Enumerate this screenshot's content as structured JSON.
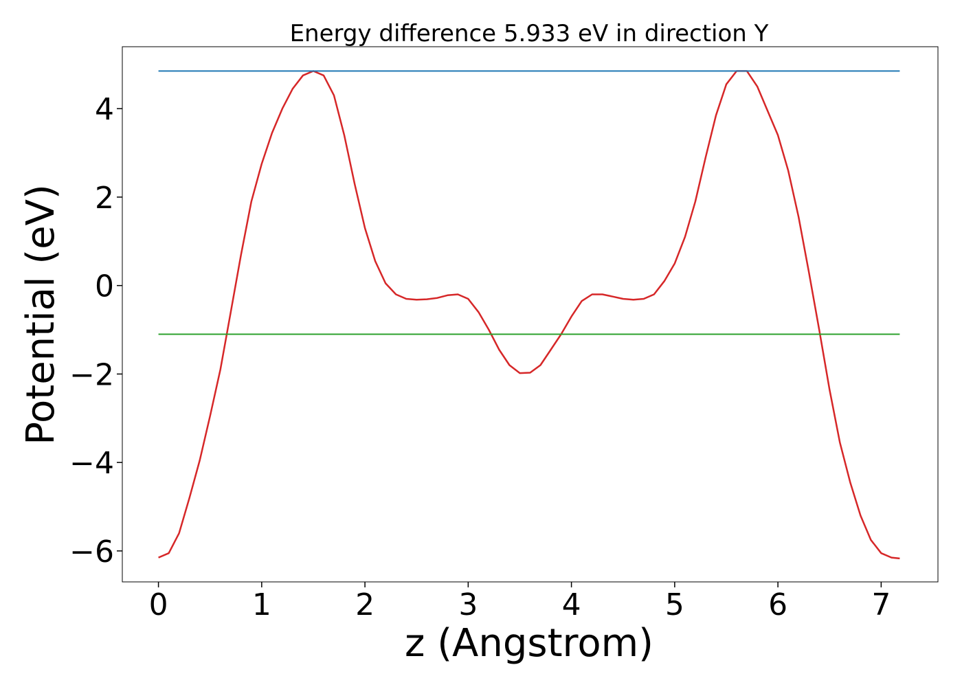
{
  "chart_data": {
    "type": "line",
    "title": "Energy difference 5.933 eV in direction Y",
    "xlabel": "z (Angstrom)",
    "ylabel": "Potential (eV)",
    "xlim": [
      -0.35,
      7.55
    ],
    "ylim": [
      -6.7,
      5.4
    ],
    "xticks": [
      0,
      1,
      2,
      3,
      4,
      5,
      6,
      7
    ],
    "xtick_labels": [
      "0",
      "1",
      "2",
      "3",
      "4",
      "5",
      "6",
      "7"
    ],
    "yticks": [
      4,
      2,
      0,
      -2,
      -4,
      -6
    ],
    "ytick_labels": [
      "4",
      "2",
      "0",
      "−2",
      "−4",
      "−6"
    ],
    "grid": false,
    "series": [
      {
        "color": "#d62728",
        "x": [
          0,
          0.1,
          0.2,
          0.3,
          0.4,
          0.5,
          0.6,
          0.7,
          0.8,
          0.9,
          1.0,
          1.1,
          1.2,
          1.3,
          1.4,
          1.5,
          1.6,
          1.7,
          1.8,
          1.9,
          2.0,
          2.1,
          2.2,
          2.3,
          2.4,
          2.5,
          2.6,
          2.7,
          2.8,
          2.9,
          3.0,
          3.1,
          3.2,
          3.3,
          3.4,
          3.5,
          3.6,
          3.7,
          3.8,
          3.9,
          4.0,
          4.1,
          4.2,
          4.3,
          4.4,
          4.5,
          4.6,
          4.7,
          4.8,
          4.9,
          5.0,
          5.1,
          5.2,
          5.3,
          5.4,
          5.5,
          5.6,
          5.7,
          5.8,
          5.9,
          6.0,
          6.1,
          6.2,
          6.3,
          6.4,
          6.5,
          6.6,
          6.7,
          6.8,
          6.9,
          7.0,
          7.1,
          7.18
        ],
        "y": [
          -6.15,
          -6.05,
          -5.6,
          -4.8,
          -3.95,
          -2.95,
          -1.9,
          -0.6,
          0.7,
          1.9,
          2.75,
          3.45,
          4.0,
          4.45,
          4.75,
          4.85,
          4.75,
          4.3,
          3.4,
          2.3,
          1.3,
          0.55,
          0.05,
          -0.2,
          -0.3,
          -0.32,
          -0.31,
          -0.28,
          -0.22,
          -0.2,
          -0.3,
          -0.6,
          -1.0,
          -1.45,
          -1.8,
          -1.98,
          -1.97,
          -1.8,
          -1.45,
          -1.1,
          -0.7,
          -0.35,
          -0.2,
          -0.2,
          -0.25,
          -0.3,
          -0.32,
          -0.3,
          -0.2,
          0.1,
          0.5,
          1.1,
          1.9,
          2.9,
          3.85,
          4.55,
          4.85,
          4.85,
          4.5,
          3.95,
          3.4,
          2.6,
          1.55,
          0.3,
          -1.0,
          -2.35,
          -3.55,
          -4.45,
          -5.2,
          -5.75,
          -6.05,
          -6.15,
          -6.17
        ]
      },
      {
        "color": "#1f77b4",
        "x": [
          0,
          7.18
        ],
        "y": [
          4.85,
          4.85
        ]
      },
      {
        "color": "#2ca02c",
        "x": [
          0,
          7.18
        ],
        "y": [
          -1.1,
          -1.1
        ]
      }
    ]
  }
}
